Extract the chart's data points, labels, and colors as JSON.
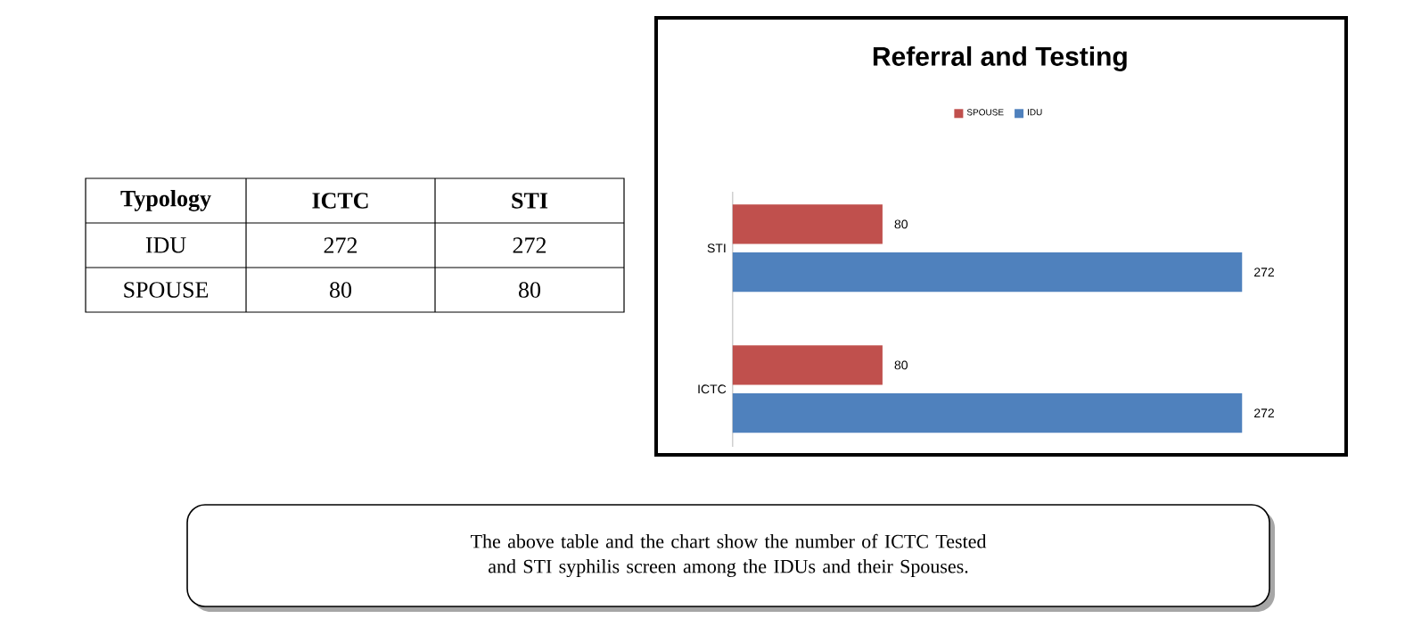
{
  "chart_data": {
    "type": "bar",
    "orientation": "horizontal",
    "title": "Referral and Testing",
    "categories": [
      "STI",
      "ICTC"
    ],
    "series": [
      {
        "name": "SPOUSE",
        "color": "#c0504d",
        "values": [
          80,
          80
        ],
        "value_labels": [
          "80",
          "80"
        ]
      },
      {
        "name": "IDU",
        "color": "#4f81bd",
        "values": [
          272,
          272
        ],
        "value_labels": [
          "272",
          "272"
        ]
      }
    ],
    "legend": "top",
    "data_labels": true,
    "annotations": [
      "Typology",
      "The above table and the chart show the number of ICTC Tested and STI syphilis screen among the IDUs and their Spouses."
    ]
  }
}
